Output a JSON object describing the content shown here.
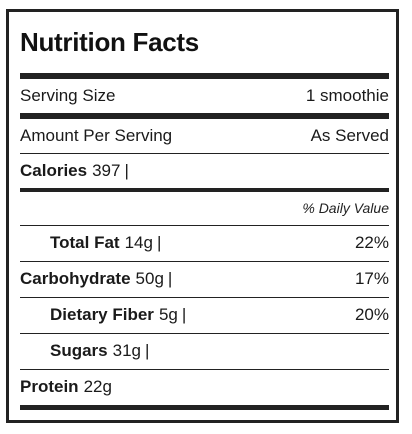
{
  "title": "Nutrition Facts",
  "serving": {
    "label": "Serving Size",
    "value": "1 smoothie"
  },
  "amount": {
    "label": "Amount Per Serving",
    "value": "As Served"
  },
  "calories": {
    "label": "Calories",
    "value": "397"
  },
  "daily_value_header": "% Daily Value",
  "nutrients": {
    "total_fat": {
      "label": "Total Fat",
      "amount": "14g",
      "dv": "22%"
    },
    "carbohydrate": {
      "label": "Carbohydrate",
      "amount": "50g",
      "dv": "17%"
    },
    "dietary_fiber": {
      "label": "Dietary Fiber",
      "amount": "5g",
      "dv": "20%"
    },
    "sugars": {
      "label": "Sugars",
      "amount": "31g"
    },
    "protein": {
      "label": "Protein",
      "amount": "22g"
    }
  }
}
